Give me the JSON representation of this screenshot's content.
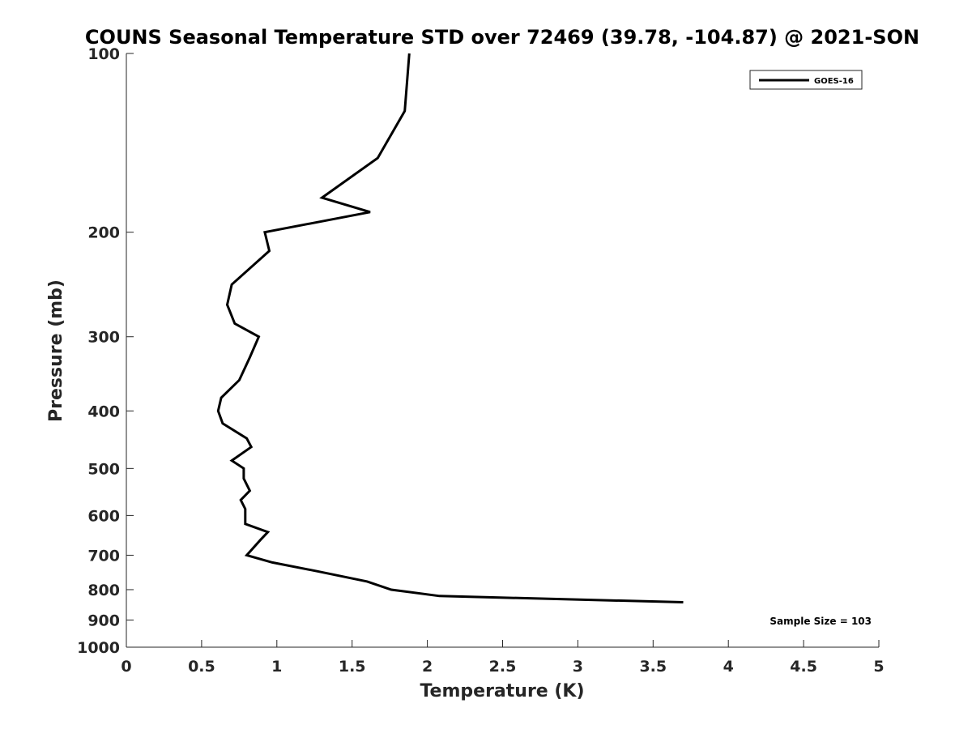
{
  "chart_data": {
    "type": "line",
    "title": "COUNS Seasonal Temperature STD over 72469 (39.78, -104.87) @ 2021-SON",
    "xlabel": "Temperature (K)",
    "ylabel": "Pressure (mb)",
    "xlim": [
      0,
      5
    ],
    "ylim": [
      100,
      1000
    ],
    "y_scale": "log",
    "y_reversed": true,
    "x_ticks": [
      0,
      0.5,
      1,
      1.5,
      2,
      2.5,
      3,
      3.5,
      4,
      4.5,
      5
    ],
    "x_tick_labels": [
      "0",
      "0.5",
      "1",
      "1.5",
      "2",
      "2.5",
      "3",
      "3.5",
      "4",
      "4.5",
      "5"
    ],
    "y_ticks": [
      100,
      200,
      300,
      400,
      500,
      600,
      700,
      800,
      900,
      1000
    ],
    "y_tick_labels": [
      "100",
      "200",
      "300",
      "400",
      "500",
      "600",
      "700",
      "800",
      "900",
      "1000"
    ],
    "grid": false,
    "legend_position": "top-right",
    "series": [
      {
        "name": "GOES-16",
        "color": "#000000",
        "x": [
          1.88,
          1.85,
          1.67,
          1.3,
          1.62,
          0.92,
          0.95,
          0.7,
          0.67,
          0.72,
          0.88,
          0.82,
          0.75,
          0.63,
          0.61,
          0.64,
          0.8,
          0.83,
          0.7,
          0.78,
          0.78,
          0.82,
          0.76,
          0.79,
          0.79,
          0.94,
          0.89,
          0.8,
          0.97,
          1.27,
          1.6,
          1.76,
          2.08,
          3.7
        ],
        "y": [
          100,
          125,
          150,
          175,
          185,
          200,
          215,
          245,
          265,
          285,
          300,
          325,
          355,
          380,
          400,
          420,
          445,
          460,
          485,
          500,
          520,
          545,
          565,
          585,
          620,
          640,
          660,
          700,
          720,
          745,
          775,
          800,
          820,
          840
        ]
      }
    ],
    "annotations": [
      {
        "text": "Sample Size = 103",
        "position": "bottom-right"
      }
    ]
  }
}
